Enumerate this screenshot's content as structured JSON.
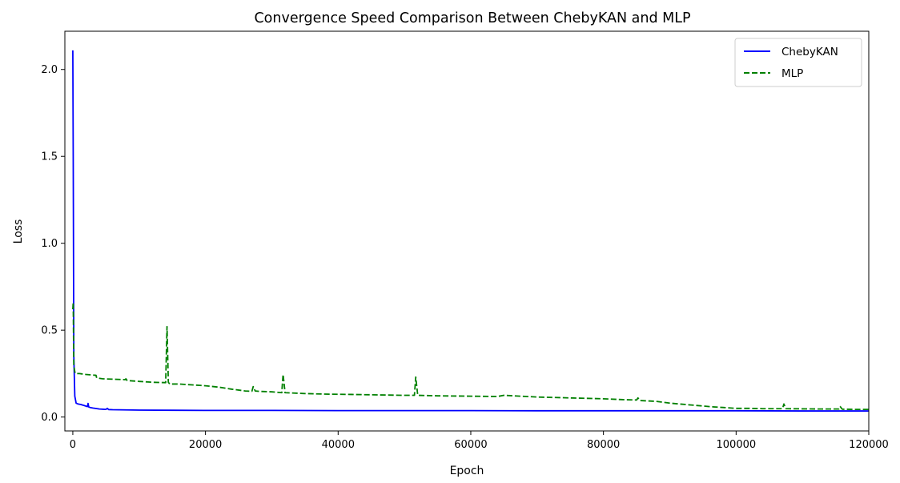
{
  "chart_data": {
    "type": "line",
    "title": "Convergence Speed Comparison Between ChebyKAN and MLP",
    "xlabel": "Epoch",
    "ylabel": "Loss",
    "xlim": [
      -1200,
      120000
    ],
    "ylim": [
      -0.08,
      2.22
    ],
    "xticks": [
      0,
      20000,
      40000,
      60000,
      80000,
      100000,
      120000
    ],
    "yticks": [
      0.0,
      0.5,
      1.0,
      1.5,
      2.0
    ],
    "xtick_labels": [
      "0",
      "20000",
      "40000",
      "60000",
      "80000",
      "100000",
      "120000"
    ],
    "ytick_labels": [
      "0.0",
      "0.5",
      "1.0",
      "1.5",
      "2.0"
    ],
    "grid": false,
    "legend_position": "top-right",
    "series": [
      {
        "name": "ChebyKAN",
        "color": "#0000ff",
        "style": "solid",
        "x": [
          0,
          60,
          150,
          300,
          500,
          800,
          1200,
          1800,
          2200,
          2300,
          2400,
          2600,
          3000,
          4000,
          5000,
          5200,
          5400,
          6000,
          8000,
          10000,
          15000,
          20000,
          30000,
          40000,
          50000,
          60000,
          70000,
          80000,
          90000,
          100000,
          110000,
          120000
        ],
        "y": [
          2.11,
          1.5,
          0.35,
          0.12,
          0.08,
          0.075,
          0.072,
          0.065,
          0.06,
          0.078,
          0.058,
          0.055,
          0.052,
          0.046,
          0.044,
          0.05,
          0.043,
          0.042,
          0.041,
          0.04,
          0.039,
          0.038,
          0.038,
          0.037,
          0.037,
          0.037,
          0.036,
          0.036,
          0.036,
          0.036,
          0.035,
          0.035
        ]
      },
      {
        "name": "MLP",
        "color": "#008000",
        "style": "dashed",
        "x": [
          0,
          60,
          150,
          300,
          400,
          1000,
          2000,
          3500,
          3600,
          4500,
          6000,
          7900,
          8000,
          8200,
          10000,
          12000,
          14000,
          14200,
          14400,
          14600,
          16000,
          18000,
          20000,
          22000,
          24000,
          26000,
          27000,
          27200,
          27500,
          28000,
          30000,
          31500,
          31700,
          32000,
          35000,
          38000,
          42000,
          45000,
          50000,
          51500,
          51700,
          52000,
          55000,
          60000,
          64000,
          65000,
          70000,
          75000,
          80000,
          83000,
          85000,
          85200,
          85500,
          88000,
          90000,
          93000,
          96000,
          98000,
          100000,
          102000,
          104000,
          107000,
          107200,
          107500,
          110000,
          113000,
          115500,
          115700,
          116000,
          118000,
          120000
        ],
        "y": [
          0.62,
          0.66,
          0.3,
          0.26,
          0.25,
          0.25,
          0.245,
          0.24,
          0.225,
          0.22,
          0.218,
          0.215,
          0.22,
          0.21,
          0.205,
          0.2,
          0.198,
          0.52,
          0.2,
          0.19,
          0.19,
          0.185,
          0.18,
          0.172,
          0.16,
          0.15,
          0.148,
          0.175,
          0.15,
          0.148,
          0.145,
          0.14,
          0.245,
          0.14,
          0.135,
          0.132,
          0.13,
          0.128,
          0.125,
          0.125,
          0.23,
          0.125,
          0.122,
          0.12,
          0.118,
          0.125,
          0.115,
          0.11,
          0.105,
          0.1,
          0.098,
          0.11,
          0.095,
          0.09,
          0.08,
          0.07,
          0.06,
          0.055,
          0.05,
          0.05,
          0.048,
          0.048,
          0.075,
          0.048,
          0.047,
          0.046,
          0.046,
          0.06,
          0.045,
          0.044,
          0.044
        ]
      }
    ]
  }
}
